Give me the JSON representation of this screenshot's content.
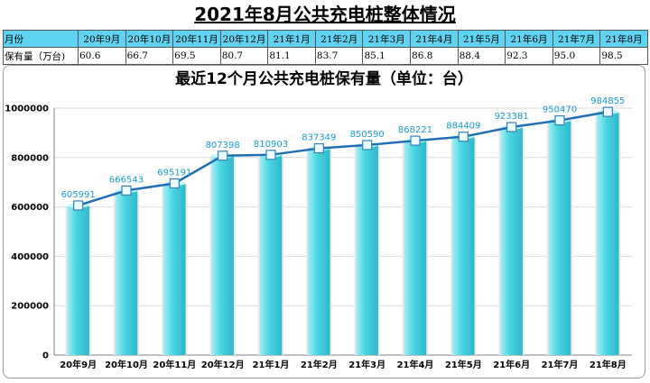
{
  "page": {
    "title": "2021年8月公共充电桩整体情况"
  },
  "table": {
    "row_header_label": "月份",
    "row_value_label": "保有量（万台)",
    "months": [
      "20年9月",
      "20年10月",
      "20年11月",
      "20年12月",
      "21年1月",
      "21年2月",
      "21年3月",
      "21年4月",
      "21年5月",
      "21年6月",
      "21年7月",
      "21年8月"
    ],
    "values": [
      "60.6",
      "66.7",
      "69.5",
      "80.7",
      "81.1",
      "83.7",
      "85.1",
      "86.8",
      "88.4",
      "92.3",
      "95.0",
      "98.5"
    ]
  },
  "colors": {
    "bar": "#46d4e2",
    "line": "#1f6eb4",
    "header_bg": "#5fd3f0",
    "label": "#1a9ad6"
  },
  "chart_data": {
    "type": "bar",
    "title": "最近12个月公共充电桩保有量（单位：台）",
    "xlabel": "",
    "ylabel": "",
    "categories": [
      "20年9月",
      "20年10月",
      "20年11月",
      "20年12月",
      "21年1月",
      "21年2月",
      "21年3月",
      "21年4月",
      "21年5月",
      "21年6月",
      "21年7月",
      "21年8月"
    ],
    "values": [
      605991,
      666543,
      695191,
      807398,
      810903,
      837349,
      850590,
      868221,
      884409,
      923381,
      950470,
      984855
    ],
    "overlay": "line",
    "ylim": [
      0,
      1000000
    ],
    "yticks": [
      0,
      200000,
      400000,
      600000,
      800000,
      1000000
    ],
    "ytick_labels": [
      "0",
      "200000",
      "400000",
      "600000",
      "800000",
      "1000000"
    ],
    "grid": true,
    "legend": "none"
  }
}
